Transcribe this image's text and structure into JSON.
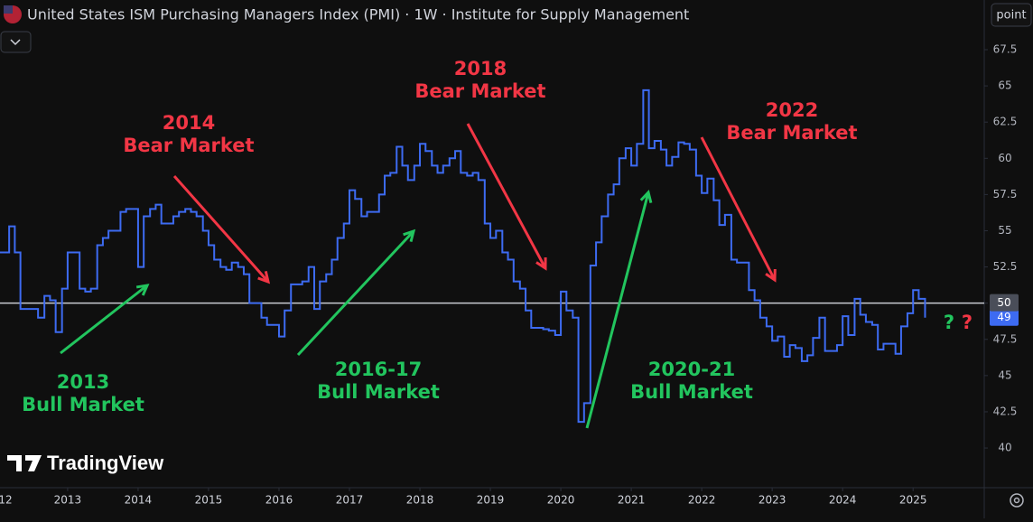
{
  "chart_data": {
    "type": "step-line",
    "title": "United States ISM Purchasing Managers Index (PMI) · 1W · Institute for Supply Management",
    "button": "point",
    "watermark": "TradingView",
    "xlim": [
      2012.04,
      2026.01
    ],
    "ylim": [
      37.26,
      70.93
    ],
    "xticks": [
      {
        "value": 2012,
        "label": "12"
      },
      2013,
      2014,
      2015,
      2016,
      2017,
      2018,
      2019,
      2020,
      2021,
      2022,
      2023,
      2024,
      2025
    ],
    "yticks": [
      40,
      42.5,
      45,
      47.5,
      50,
      52.5,
      55,
      57.5,
      60,
      62.5,
      65,
      67.5
    ],
    "grid": false,
    "reference_line": 50,
    "series": [
      {
        "name": "PMI",
        "color": "#3d6bf2",
        "x": [
          2012.0,
          2012.08,
          2012.17,
          2012.25,
          2012.33,
          2012.42,
          2012.5,
          2012.58,
          2012.67,
          2012.75,
          2012.83,
          2012.92,
          2013.0,
          2013.08,
          2013.17,
          2013.25,
          2013.33,
          2013.42,
          2013.5,
          2013.58,
          2013.67,
          2013.75,
          2013.83,
          2013.92,
          2014.0,
          2014.08,
          2014.17,
          2014.25,
          2014.33,
          2014.42,
          2014.5,
          2014.58,
          2014.67,
          2014.75,
          2014.83,
          2014.92,
          2015.0,
          2015.08,
          2015.17,
          2015.25,
          2015.33,
          2015.42,
          2015.5,
          2015.58,
          2015.67,
          2015.75,
          2015.83,
          2015.92,
          2016.0,
          2016.08,
          2016.17,
          2016.25,
          2016.33,
          2016.42,
          2016.5,
          2016.58,
          2016.67,
          2016.75,
          2016.83,
          2016.92,
          2017.0,
          2017.08,
          2017.17,
          2017.25,
          2017.33,
          2017.42,
          2017.5,
          2017.58,
          2017.67,
          2017.75,
          2017.83,
          2017.92,
          2018.0,
          2018.08,
          2018.17,
          2018.25,
          2018.33,
          2018.42,
          2018.5,
          2018.58,
          2018.67,
          2018.75,
          2018.83,
          2018.92,
          2019.0,
          2019.08,
          2019.17,
          2019.25,
          2019.33,
          2019.42,
          2019.5,
          2019.58,
          2019.67,
          2019.75,
          2019.83,
          2019.92,
          2020.0,
          2020.08,
          2020.17,
          2020.25,
          2020.33,
          2020.42,
          2020.5,
          2020.58,
          2020.67,
          2020.75,
          2020.83,
          2020.92,
          2021.0,
          2021.08,
          2021.17,
          2021.25,
          2021.33,
          2021.42,
          2021.5,
          2021.58,
          2021.67,
          2021.75,
          2021.83,
          2021.92,
          2022.0,
          2022.08,
          2022.17,
          2022.25,
          2022.33,
          2022.42,
          2022.5,
          2022.58,
          2022.67,
          2022.75,
          2022.83,
          2022.92,
          2023.0,
          2023.08,
          2023.17,
          2023.25,
          2023.33,
          2023.42,
          2023.5,
          2023.58,
          2023.67,
          2023.75,
          2023.83,
          2023.92,
          2024.0,
          2024.08,
          2024.17,
          2024.25,
          2024.33,
          2024.42,
          2024.5,
          2024.58,
          2024.67,
          2024.75,
          2024.83,
          2024.92,
          2025.0,
          2025.08,
          2025.17
        ],
        "values": [
          53.5,
          53.5,
          55.3,
          53.5,
          49.6,
          49.6,
          49.6,
          49,
          50.5,
          50.2,
          48,
          51,
          53.5,
          53.5,
          51,
          50.8,
          51,
          54,
          54.5,
          55,
          55,
          56.3,
          56.5,
          56.5,
          52.5,
          56,
          56.5,
          56.8,
          55.5,
          55.5,
          56,
          56.3,
          56.5,
          56.3,
          56,
          55,
          54,
          53,
          52.5,
          52.3,
          52.8,
          52.5,
          52,
          50,
          50,
          49,
          48.5,
          48.5,
          47.7,
          49.5,
          51.3,
          51.3,
          51.5,
          52.5,
          49.6,
          51.5,
          52,
          53,
          54.5,
          55.5,
          57.8,
          57.2,
          56,
          56.3,
          56.3,
          57.5,
          58.8,
          59,
          60.8,
          59.5,
          58.5,
          59.5,
          61,
          60.5,
          59.5,
          59,
          59.5,
          60,
          60.5,
          59,
          58.8,
          59,
          58.5,
          55.5,
          54.5,
          55,
          53.5,
          53,
          51.5,
          51,
          49.5,
          48.3,
          48.3,
          48.2,
          48.1,
          47.8,
          50.8,
          49.5,
          49,
          41.8,
          43.1,
          52.6,
          54.2,
          56,
          57.5,
          58.2,
          60,
          60.7,
          59.5,
          61,
          64.7,
          60.7,
          61.2,
          60.6,
          59.5,
          60.1,
          61.1,
          61,
          60.6,
          58.8,
          57.6,
          58.6,
          57.1,
          55.4,
          56.1,
          53,
          52.8,
          52.8,
          50.9,
          50.2,
          49,
          48.4,
          47.4,
          47.7,
          46.3,
          47.1,
          46.9,
          46,
          46.4,
          47.6,
          49,
          46.7,
          46.7,
          47.1,
          49.1,
          47.8,
          50.3,
          49.2,
          48.7,
          48.5,
          46.8,
          47.2,
          47.2,
          46.5,
          48.4,
          49.3,
          50.9,
          50.3,
          49
        ]
      }
    ],
    "annotations": [
      {
        "lines": [
          "2014",
          "Bear Market"
        ],
        "color": "#f23645"
      },
      {
        "lines": [
          "2018",
          "Bear Market"
        ],
        "color": "#f23645"
      },
      {
        "lines": [
          "2022",
          "Bear Market"
        ],
        "color": "#f23645"
      },
      {
        "lines": [
          "2013",
          "Bull Market"
        ],
        "color": "#22c55e"
      },
      {
        "lines": [
          "2016-17",
          "Bull Market"
        ],
        "color": "#22c55e"
      },
      {
        "lines": [
          "2020-21",
          "Bull Market"
        ],
        "color": "#22c55e"
      },
      {
        "lines": [
          "?"
        ],
        "color": "#22c55e"
      },
      {
        "lines": [
          "?"
        ],
        "color": "#f23645"
      }
    ]
  }
}
